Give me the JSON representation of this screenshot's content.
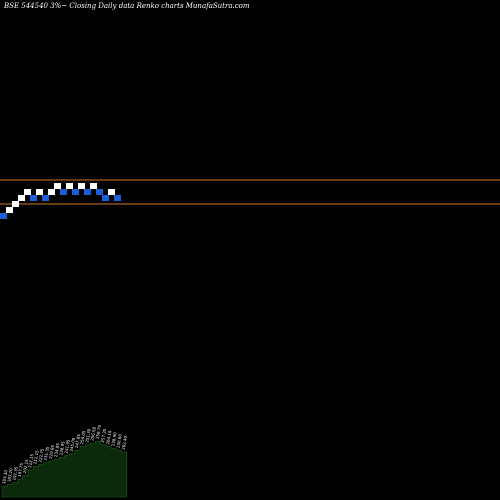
{
  "chart_data": {
    "type": "renko",
    "title": "BSE 544540  3%~  Closing Daily data  Renko  charts MunafaSutra.com",
    "xlabel": "",
    "ylabel": "",
    "grid": false,
    "reference_lines": [
      {
        "value": 226,
        "color": "#cc7a2a"
      },
      {
        "value": 198,
        "color": "#cc7a2a"
      }
    ],
    "bricks": [
      {
        "index": 0,
        "direction": "down",
        "value": 180
      },
      {
        "index": 1,
        "direction": "up",
        "value": 186
      },
      {
        "index": 2,
        "direction": "up",
        "value": 192
      },
      {
        "index": 3,
        "direction": "up",
        "value": 198
      },
      {
        "index": 4,
        "direction": "up",
        "value": 204
      },
      {
        "index": 5,
        "direction": "down",
        "value": 198
      },
      {
        "index": 6,
        "direction": "up",
        "value": 204
      },
      {
        "index": 7,
        "direction": "down",
        "value": 198
      },
      {
        "index": 8,
        "direction": "up",
        "value": 204
      },
      {
        "index": 9,
        "direction": "up",
        "value": 210
      },
      {
        "index": 10,
        "direction": "down",
        "value": 204
      },
      {
        "index": 11,
        "direction": "up",
        "value": 210
      },
      {
        "index": 12,
        "direction": "down",
        "value": 204
      },
      {
        "index": 13,
        "direction": "up",
        "value": 210
      },
      {
        "index": 14,
        "direction": "down",
        "value": 204
      },
      {
        "index": 15,
        "direction": "up",
        "value": 210
      },
      {
        "index": 16,
        "direction": "down",
        "value": 204
      },
      {
        "index": 17,
        "direction": "down",
        "value": 198
      },
      {
        "index": 18,
        "direction": "up",
        "value": 204
      },
      {
        "index": 19,
        "direction": "down",
        "value": 198
      }
    ],
    "volume_labels": [
      "183.30",
      "183.20",
      "192.35",
      "197.75",
      "202.15",
      "212.15",
      "212.15",
      "222.75",
      "231.35",
      "229.85",
      "234.85",
      "238.95",
      "241.95",
      "245.00",
      "247.85",
      "250.05",
      "251.30",
      "256.58",
      "256.79",
      "257.35",
      "264.19",
      "238.90",
      "230.60",
      "262.40"
    ],
    "volume_values": [
      12,
      14,
      16,
      20,
      24,
      30,
      34,
      36,
      38,
      40,
      42,
      44,
      46,
      48,
      52,
      56,
      58,
      60,
      62,
      58,
      56,
      54,
      52,
      50
    ]
  }
}
